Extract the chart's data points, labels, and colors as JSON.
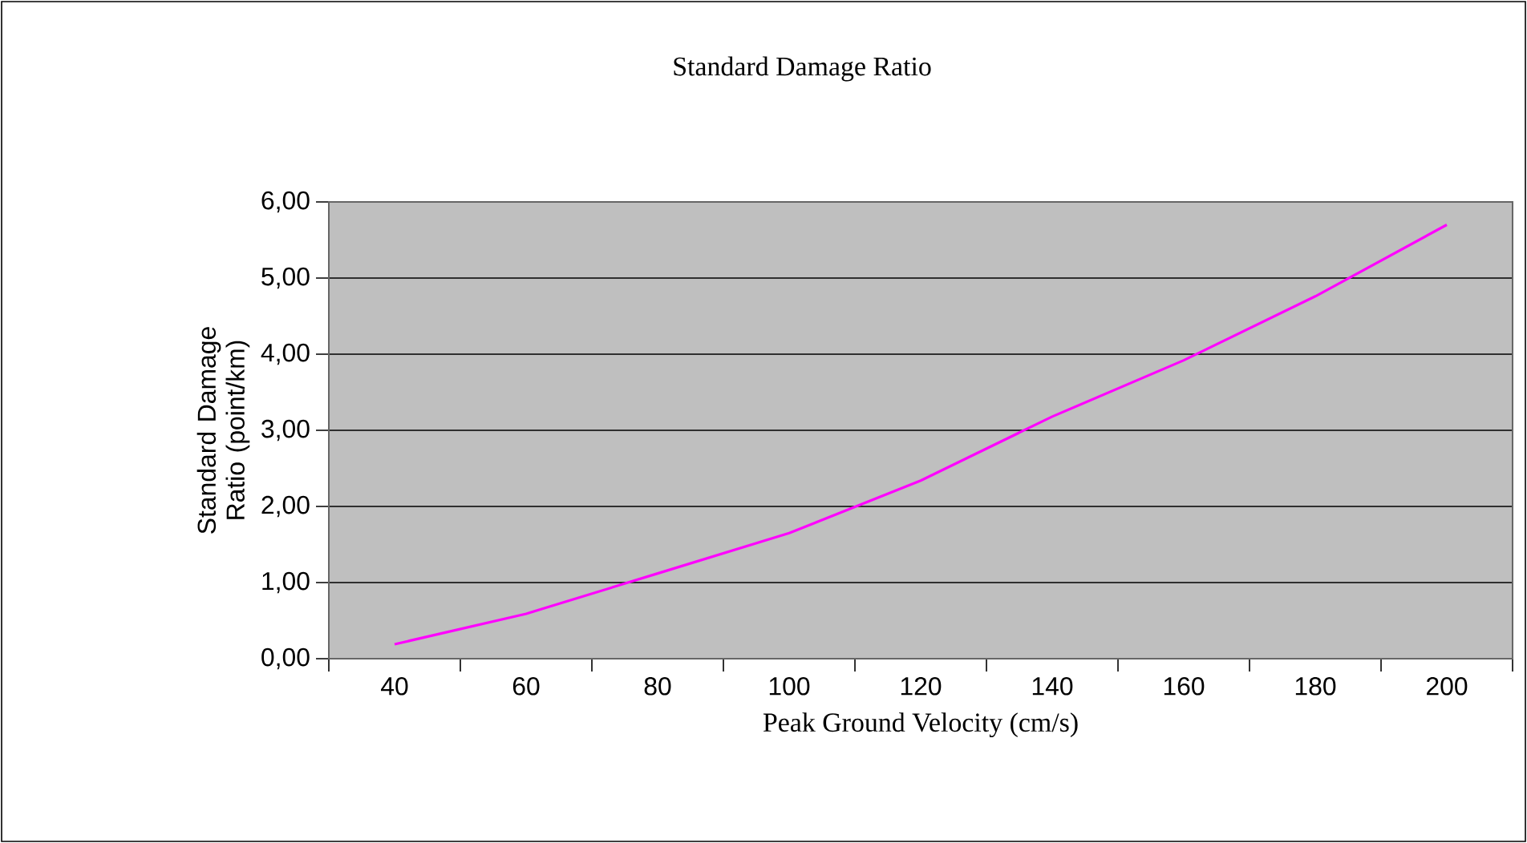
{
  "chart_data": {
    "type": "line",
    "title": "Standard Damage Ratio",
    "xlabel": "Peak Ground Velocity (cm/s)",
    "ylabel": "Standard Damage Ratio (point/km)",
    "categories": [
      "40",
      "60",
      "80",
      "100",
      "120",
      "140",
      "160",
      "180",
      "200"
    ],
    "series": [
      {
        "color": "#ff00ff",
        "values": [
          0.19,
          0.59,
          1.12,
          1.65,
          2.34,
          3.18,
          3.92,
          4.76,
          5.7
        ]
      }
    ],
    "ylim": [
      0,
      6
    ],
    "yticks": [
      {
        "value": 0,
        "label": "0,00"
      },
      {
        "value": 1,
        "label": "1,00"
      },
      {
        "value": 2,
        "label": "2,00"
      },
      {
        "value": 3,
        "label": "3,00"
      },
      {
        "value": 4,
        "label": "4,00"
      },
      {
        "value": 5,
        "label": "5,00"
      },
      {
        "value": 6,
        "label": "6,00"
      }
    ],
    "grid": "y",
    "marker": "none",
    "line_style": "solid"
  }
}
